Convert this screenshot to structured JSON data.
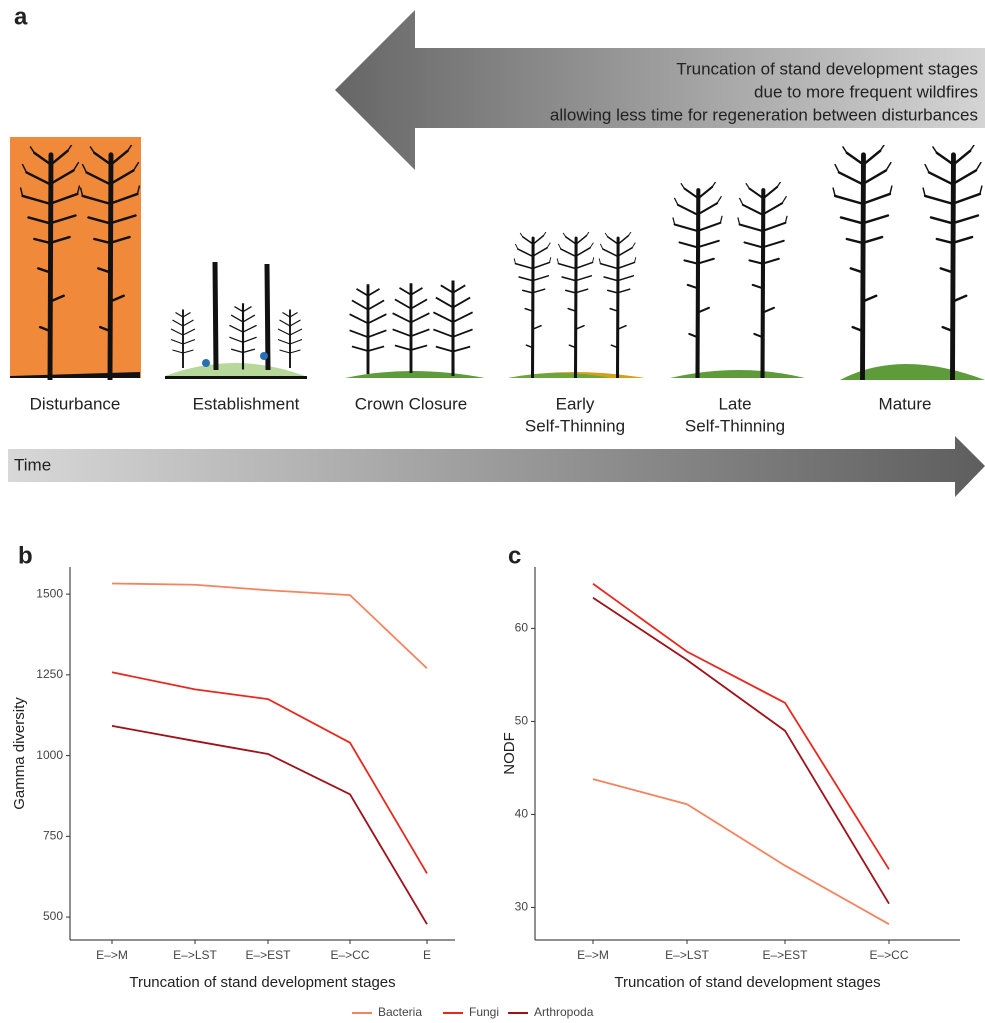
{
  "panel_a": {
    "label": "a",
    "arrow_text": [
      "Truncation of stand development stages",
      "due to more frequent wildfires",
      "allowing less time for regeneration between disturbances"
    ],
    "stages": [
      [
        "Disturbance"
      ],
      [
        "Establishment"
      ],
      [
        "Crown Closure"
      ],
      [
        "Early",
        "Self-Thinning"
      ],
      [
        "Late",
        "Self-Thinning"
      ],
      [
        "Mature"
      ]
    ],
    "time_label": "Time"
  },
  "chart_data": [
    {
      "type": "line",
      "panel_label": "b",
      "y_label": "Gamma diversity",
      "x_label": "Truncation of stand development stages",
      "categories": [
        "E–>M",
        "E–>LST",
        "E–>EST",
        "E–>CC",
        "E"
      ],
      "ylim": [
        429,
        1584
      ],
      "yticks": [
        500,
        750,
        1000,
        1250,
        1500
      ],
      "series": [
        {
          "name": "Bacteria",
          "color": "#f4845f",
          "values": [
            1533,
            1529,
            1512,
            1497,
            1270
          ]
        },
        {
          "name": "Fungi",
          "color": "#e8281e",
          "values": [
            1258,
            1205,
            1175,
            1040,
            635
          ]
        },
        {
          "name": "Arthropoda",
          "color": "#9e1118",
          "values": [
            1092,
            1045,
            1005,
            880,
            478
          ]
        }
      ]
    },
    {
      "type": "line",
      "panel_label": "c",
      "y_label": "NODF",
      "x_label": "Truncation of stand development stages",
      "categories": [
        "E–>M",
        "E–>LST",
        "E–>EST",
        "E–>CC"
      ],
      "ylim": [
        26.5,
        66.6
      ],
      "yticks": [
        30,
        40,
        50,
        60
      ],
      "series": [
        {
          "color": "#f4845f",
          "values": [
            43.8,
            41.1,
            34.5,
            28.2
          ]
        },
        {
          "color": "#e8281e",
          "values": [
            64.8,
            57.5,
            52,
            34.1
          ]
        },
        {
          "color": "#9e1118",
          "values": [
            63.3,
            56.6,
            49,
            30.4
          ]
        }
      ]
    }
  ]
}
